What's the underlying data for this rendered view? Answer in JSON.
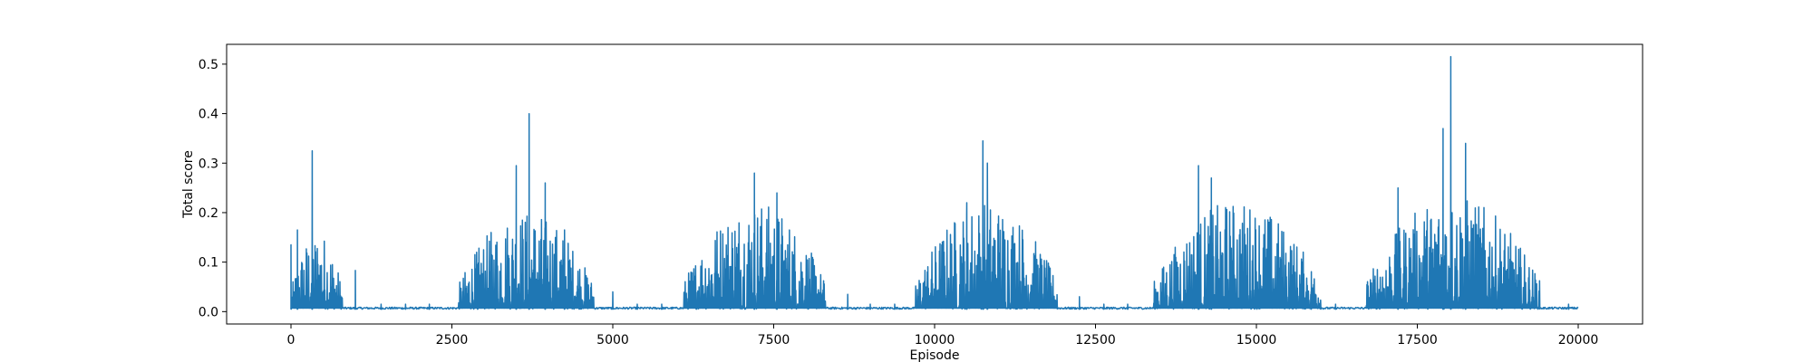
{
  "chart_data": {
    "type": "line",
    "title": "",
    "xlabel": "Episode",
    "ylabel": "Total score",
    "xlim": [
      -1000,
      21000
    ],
    "ylim": [
      -0.025,
      0.54
    ],
    "xticks": [
      0,
      2500,
      5000,
      7500,
      10000,
      12500,
      15000,
      17500,
      20000
    ],
    "xtick_labels": [
      "0",
      "2500",
      "5000",
      "7500",
      "10000",
      "12500",
      "15000",
      "17500",
      "20000"
    ],
    "yticks": [
      0.0,
      0.1,
      0.2,
      0.3,
      0.4,
      0.5
    ],
    "ytick_labels": [
      "0.0",
      "0.1",
      "0.2",
      "0.3",
      "0.4",
      "0.5"
    ],
    "grid": false,
    "legend": "none",
    "series_color": "#1f77b4",
    "x_range": [
      0,
      20000
    ],
    "baseline": 0.005,
    "active_windows": [
      {
        "start": 0,
        "end": 800,
        "typical_peak": 0.16
      },
      {
        "start": 2600,
        "end": 4700,
        "typical_peak": 0.2
      },
      {
        "start": 6100,
        "end": 8300,
        "typical_peak": 0.22
      },
      {
        "start": 9700,
        "end": 11900,
        "typical_peak": 0.22
      },
      {
        "start": 13400,
        "end": 16000,
        "typical_peak": 0.22
      },
      {
        "start": 16700,
        "end": 19400,
        "typical_peak": 0.23
      }
    ],
    "notable_peaks": [
      {
        "x": 0,
        "y": 0.135
      },
      {
        "x": 100,
        "y": 0.165
      },
      {
        "x": 330,
        "y": 0.325
      },
      {
        "x": 2900,
        "y": 0.095
      },
      {
        "x": 3500,
        "y": 0.295
      },
      {
        "x": 3700,
        "y": 0.4
      },
      {
        "x": 3950,
        "y": 0.26
      },
      {
        "x": 4250,
        "y": 0.165
      },
      {
        "x": 7200,
        "y": 0.28
      },
      {
        "x": 7550,
        "y": 0.24
      },
      {
        "x": 10500,
        "y": 0.22
      },
      {
        "x": 10750,
        "y": 0.345
      },
      {
        "x": 10820,
        "y": 0.3
      },
      {
        "x": 14100,
        "y": 0.295
      },
      {
        "x": 14300,
        "y": 0.27
      },
      {
        "x": 17200,
        "y": 0.25
      },
      {
        "x": 17900,
        "y": 0.37
      },
      {
        "x": 18020,
        "y": 0.515
      },
      {
        "x": 18250,
        "y": 0.34
      }
    ],
    "isolated_spikes": [
      {
        "x": 1000,
        "y": 0.083
      },
      {
        "x": 1400,
        "y": 0.015
      },
      {
        "x": 1780,
        "y": 0.015
      },
      {
        "x": 2150,
        "y": 0.015
      },
      {
        "x": 5000,
        "y": 0.04
      },
      {
        "x": 5380,
        "y": 0.015
      },
      {
        "x": 5760,
        "y": 0.015
      },
      {
        "x": 8650,
        "y": 0.035
      },
      {
        "x": 9000,
        "y": 0.015
      },
      {
        "x": 9380,
        "y": 0.015
      },
      {
        "x": 12250,
        "y": 0.03
      },
      {
        "x": 12630,
        "y": 0.015
      },
      {
        "x": 13000,
        "y": 0.015
      },
      {
        "x": 15850,
        "y": 0.04
      },
      {
        "x": 16230,
        "y": 0.015
      },
      {
        "x": 19850,
        "y": 0.015
      }
    ]
  }
}
